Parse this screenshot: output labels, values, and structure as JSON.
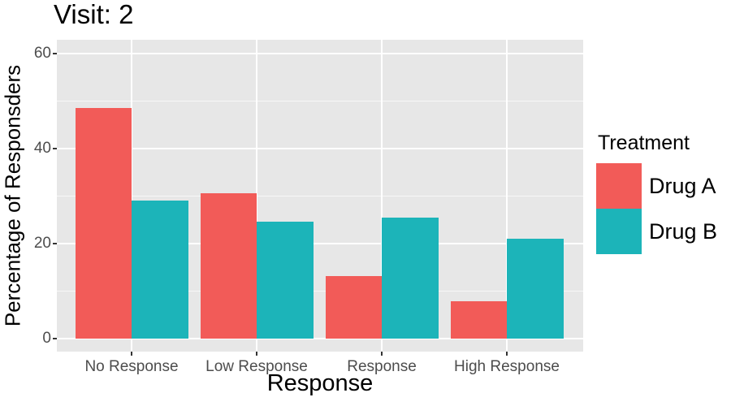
{
  "chart_data": {
    "type": "bar",
    "title": "Visit: 2",
    "xlabel": "Response",
    "ylabel": "Percentage of Responsders",
    "categories": [
      "No Response",
      "Low Response",
      "Response",
      "High Response"
    ],
    "series": [
      {
        "name": "Drug A",
        "color": "#F25B58",
        "values": [
          48.5,
          30.6,
          13.2,
          7.9
        ]
      },
      {
        "name": "Drug B",
        "color": "#1CB4B9",
        "values": [
          29.1,
          24.5,
          25.4,
          21.0
        ]
      }
    ],
    "ylim": [
      0,
      63
    ],
    "yticks": [
      0,
      20,
      40,
      60
    ],
    "yticks_minor": [
      10,
      30,
      50
    ],
    "grid": true,
    "legend": {
      "title": "Treatment",
      "position": "right",
      "entries": [
        "Drug A",
        "Drug B"
      ]
    },
    "panel_background": "#E7E7E7",
    "tick_label_color": "#4d4d4d"
  }
}
